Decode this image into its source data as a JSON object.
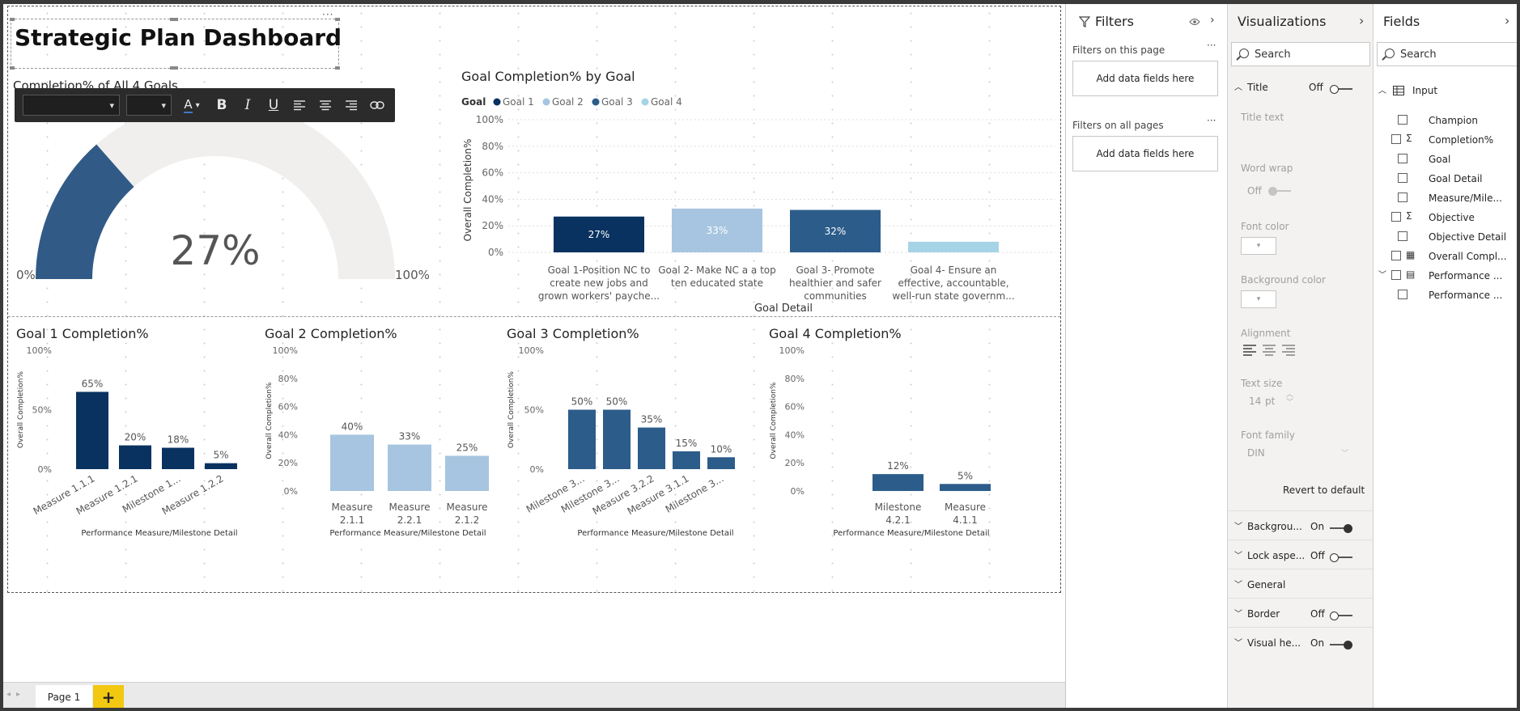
{
  "dashboard": {
    "title": "Strategic Plan Dashboard",
    "gauge_title": "Completion% of All 4 Goals",
    "gauge_value_label": "27%",
    "gauge_value": 27,
    "gauge_min_label": "0%",
    "gauge_max_label": "100%"
  },
  "colors": {
    "goal1": "#0a3260",
    "goal2": "#a7c5e0",
    "goal3": "#2c5c8a",
    "goal4": "#a6d4e6",
    "gauge_fill": "#315a86",
    "gauge_track": "#f0efee",
    "format_bar": "#2b2b2b",
    "add_page": "#f2c811"
  },
  "chart_data": [
    {
      "id": "by-goal",
      "type": "bar",
      "title": "Goal Completion% by Goal",
      "legend_title": "Goal",
      "legend": [
        "Goal 1",
        "Goal 2",
        "Goal 3",
        "Goal 4"
      ],
      "categories": [
        [
          "Goal 1-Position NC to",
          "create new jobs and",
          "grown workers' payche..."
        ],
        [
          "Goal 2- Make NC a a top",
          "ten educated state"
        ],
        [
          "Goal 3- Promote",
          "healthier and safer",
          "communities"
        ],
        [
          "Goal 4- Ensure an",
          "effective, accountable,",
          "well-run state governm..."
        ]
      ],
      "values": [
        27,
        33,
        32,
        8
      ],
      "data_labels": [
        "27%",
        "33%",
        "32%",
        ""
      ],
      "xlabel": "Goal Detail",
      "ylabel": "Overall Completion%",
      "yticks": [
        "100%",
        "80%",
        "60%",
        "40%",
        "20%",
        "0%"
      ],
      "ylim": [
        0,
        100
      ],
      "legend_position": "top-left"
    },
    {
      "id": "goal1",
      "type": "bar",
      "title": "Goal 1 Completion%",
      "categories": [
        "Measure 1.1.1",
        "Measure 1.2.1",
        "Milestone 1...",
        "Measure 1.2.2"
      ],
      "values": [
        65,
        20,
        18,
        5
      ],
      "data_labels": [
        "65%",
        "20%",
        "18%",
        "5%"
      ],
      "xlabel": "Performance Measure/Milestone Detail",
      "ylabel": "Overall Completion%",
      "yticks": [
        "100%",
        "50%",
        "0%"
      ],
      "ylim": [
        0,
        100
      ]
    },
    {
      "id": "goal2",
      "type": "bar",
      "title": "Goal 2 Completion%",
      "categories": [
        [
          "Measure",
          "2.1.1"
        ],
        [
          "Measure",
          "2.2.1"
        ],
        [
          "Measure",
          "2.1.2"
        ]
      ],
      "values": [
        40,
        33,
        25
      ],
      "data_labels": [
        "40%",
        "33%",
        "25%"
      ],
      "xlabel": "Performance Measure/Milestone Detail",
      "ylabel": "Overall Completion%",
      "yticks": [
        "100%",
        "80%",
        "60%",
        "40%",
        "20%",
        "0%"
      ],
      "ylim": [
        0,
        100
      ]
    },
    {
      "id": "goal3",
      "type": "bar",
      "title": "Goal 3 Completion%",
      "categories": [
        "Milestone 3...",
        "Milestone 3...",
        "Measure 3.2.2",
        "Measure 3.1.1",
        "Milestone 3..."
      ],
      "values": [
        50,
        50,
        35,
        15,
        10
      ],
      "data_labels": [
        "50%",
        "50%",
        "35%",
        "15%",
        "10%"
      ],
      "xlabel": "Performance Measure/Milestone Detail",
      "ylabel": "Overall Completion%",
      "yticks": [
        "100%",
        "50%",
        "0%"
      ],
      "ylim": [
        0,
        100
      ]
    },
    {
      "id": "goal4",
      "type": "bar",
      "title": "Goal 4 Completion%",
      "categories": [
        [
          "Milestone",
          "4.2.1"
        ],
        [
          "Measure",
          "4.1.1"
        ]
      ],
      "values": [
        12,
        5
      ],
      "data_labels": [
        "12%",
        "5%"
      ],
      "xlabel": "Performance Measure/Milestone Detail",
      "ylabel": "Overall Completion%",
      "yticks": [
        "100%",
        "80%",
        "60%",
        "40%",
        "20%",
        "0%"
      ],
      "ylim": [
        0,
        100
      ]
    }
  ],
  "filters": {
    "title": "Filters",
    "on_page_label": "Filters on this page",
    "on_all_label": "Filters on all pages",
    "drop_text": "Add data fields here"
  },
  "visualizations": {
    "title": "Visualizations",
    "search_placeholder": "Search",
    "title_section": "Title",
    "title_state": "Off",
    "title_text_label": "Title text",
    "word_wrap_label": "Word wrap",
    "word_wrap_state": "Off",
    "font_color_label": "Font color",
    "background_color_label": "Background color",
    "alignment_label": "Alignment",
    "text_size_label": "Text size",
    "text_size_value": "14",
    "text_size_unit": "pt",
    "font_family_label": "Font family",
    "font_family_value": "DIN",
    "revert_label": "Revert to default",
    "sections": [
      {
        "label": "Backgrou...",
        "state": "On"
      },
      {
        "label": "Lock aspe...",
        "state": "Off"
      },
      {
        "label": "General",
        "state": ""
      },
      {
        "label": "Border",
        "state": "Off"
      },
      {
        "label": "Visual he...",
        "state": "On"
      }
    ]
  },
  "fields": {
    "title": "Fields",
    "search_placeholder": "Search",
    "table_name": "Input",
    "items": [
      {
        "label": "Champion",
        "icon": ""
      },
      {
        "label": "Completion%",
        "icon": "sigma-icon"
      },
      {
        "label": "Goal",
        "icon": ""
      },
      {
        "label": "Goal Detail",
        "icon": ""
      },
      {
        "label": "Measure/Mile...",
        "icon": ""
      },
      {
        "label": "Objective",
        "icon": "sigma-icon"
      },
      {
        "label": "Objective Detail",
        "icon": ""
      },
      {
        "label": "Overall Compl...",
        "icon": "calculator-icon"
      },
      {
        "label": "Performance ...",
        "icon": "table-icon"
      },
      {
        "label": "Performance ...",
        "icon": ""
      }
    ]
  },
  "pages": {
    "tab_label": "Page 1",
    "add_label": "+"
  }
}
